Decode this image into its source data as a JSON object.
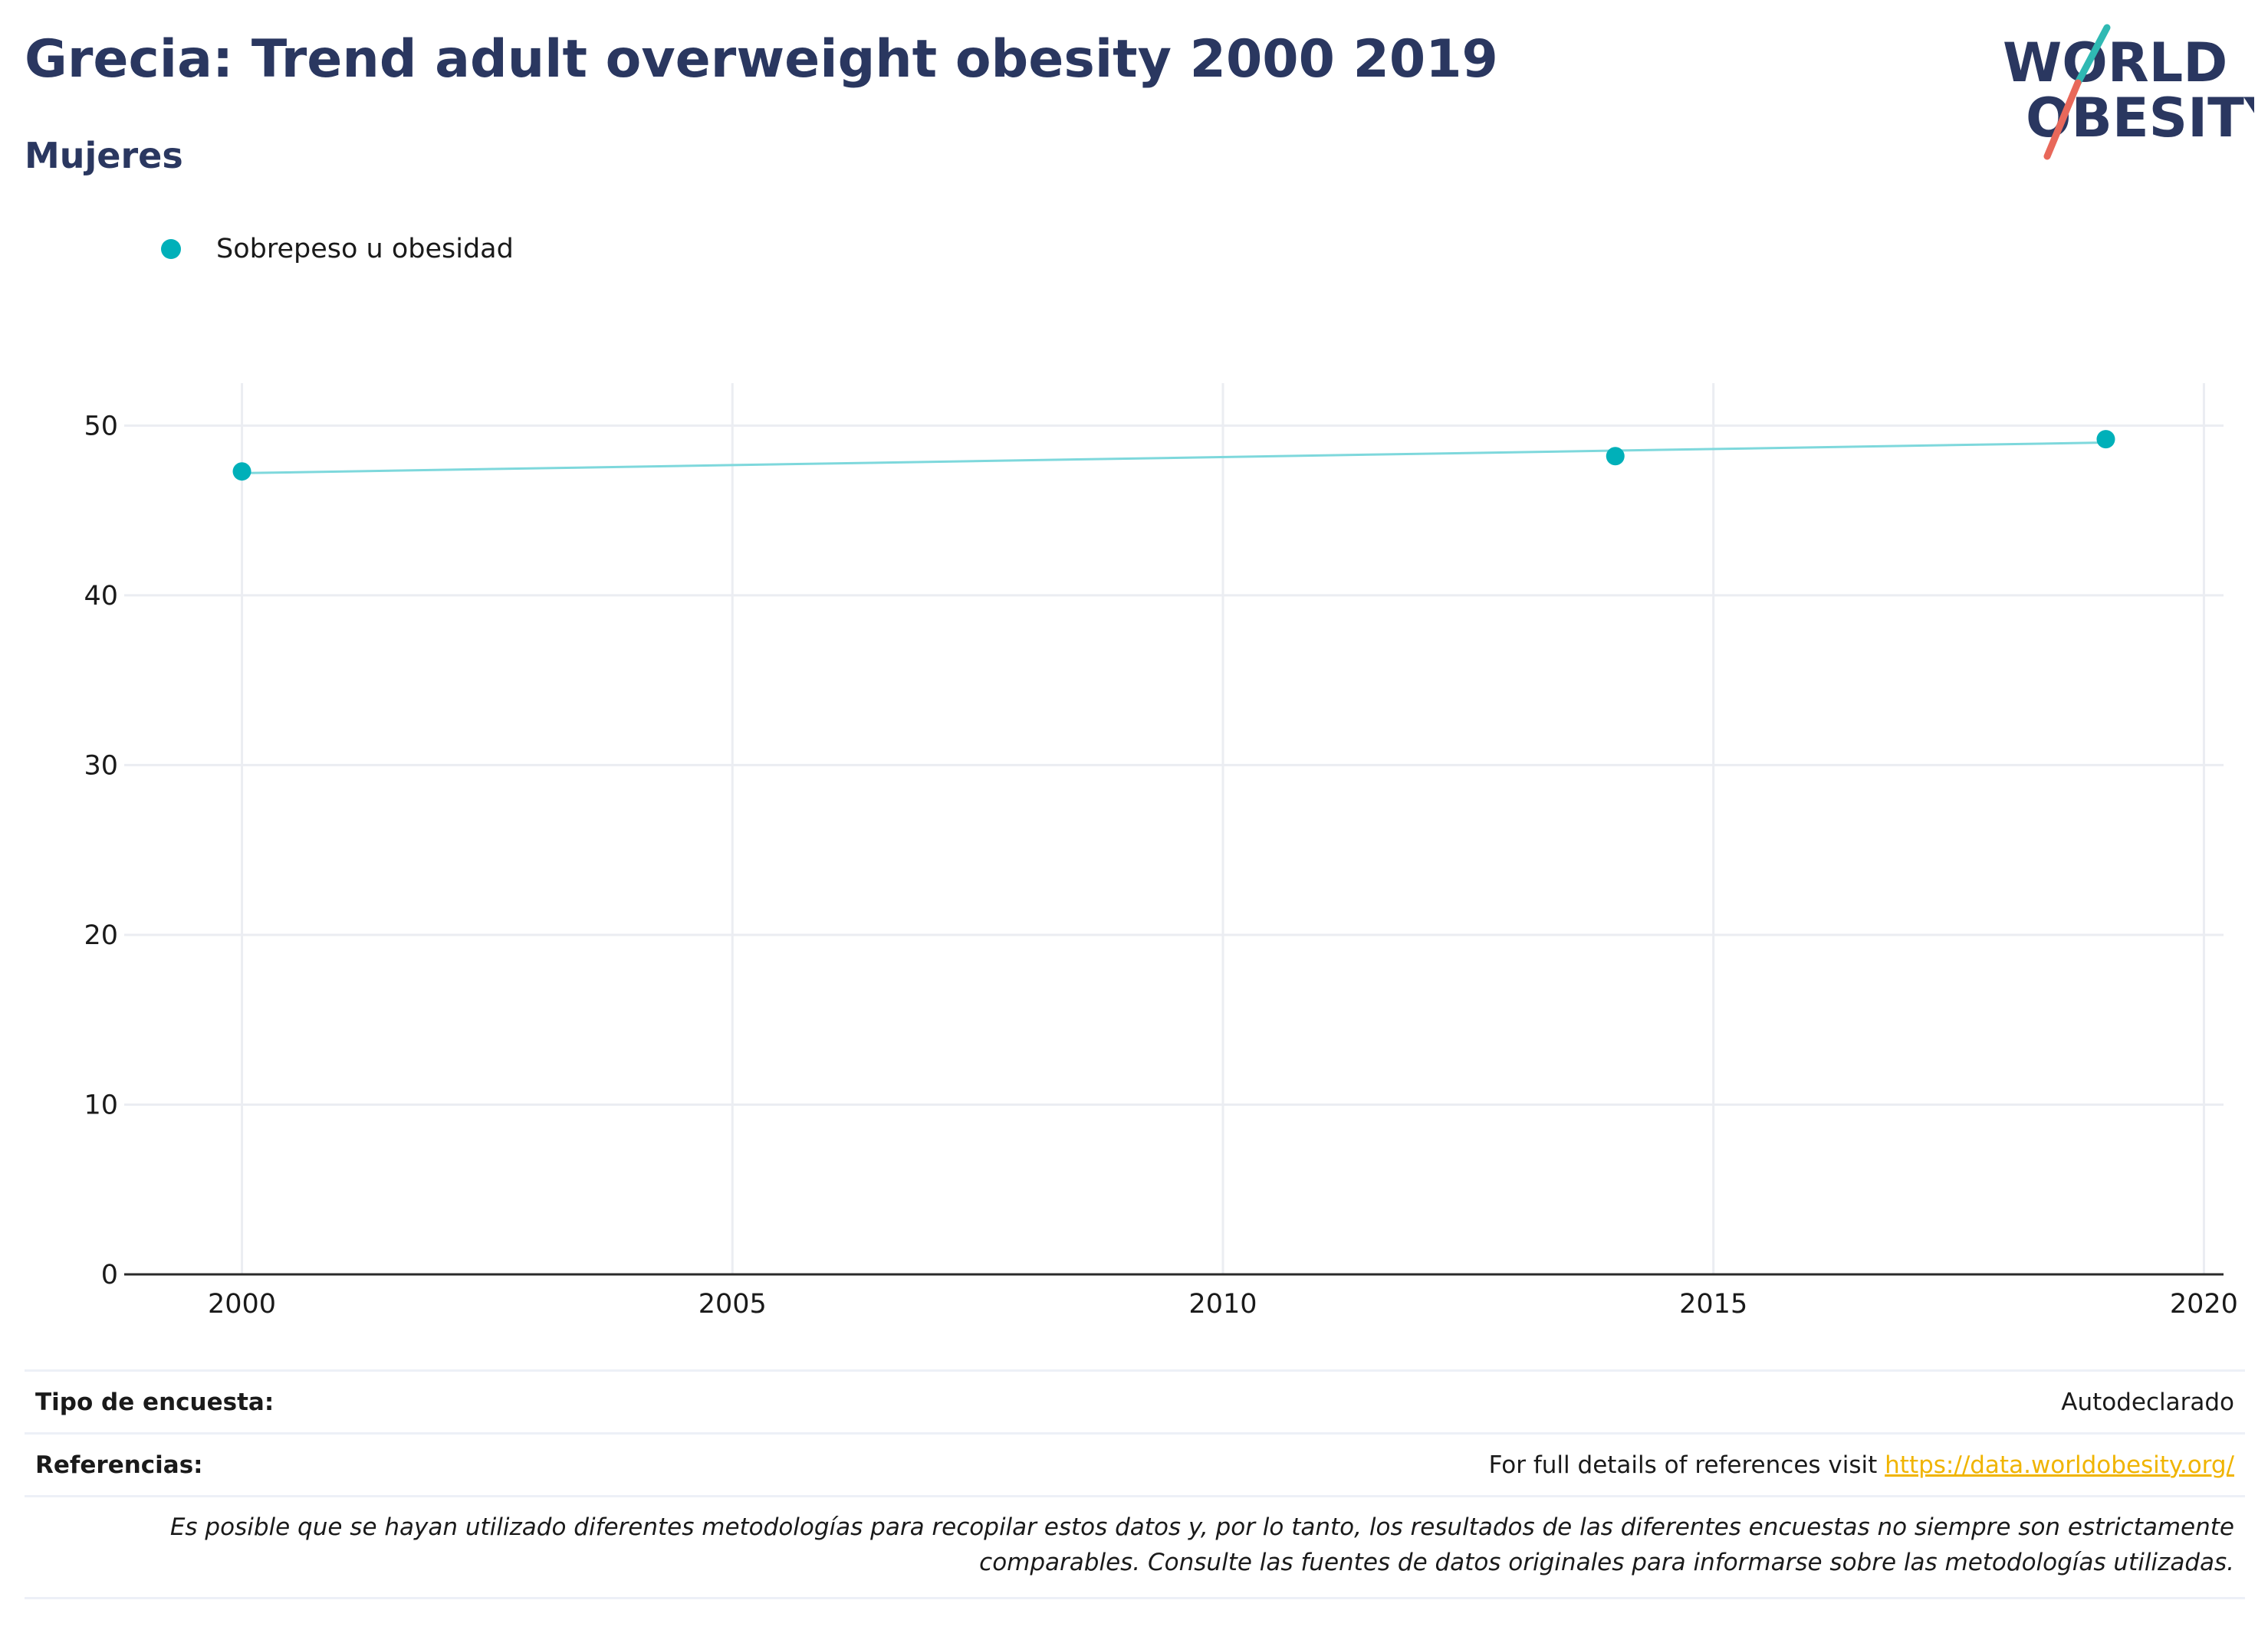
{
  "header": {
    "title": "Grecia: Trend adult overweight obesity 2000 2019",
    "subtitle": "Mujeres"
  },
  "logo": {
    "line1": "WORLD",
    "line2": "OBESITY"
  },
  "colors": {
    "title": "#2a3760",
    "series": "#00b0b9",
    "series_line": "#7ed8dc",
    "link": "#f0b400",
    "logo_teal": "#2fb9b3",
    "logo_coral": "#e8685a"
  },
  "chart_data": {
    "type": "line",
    "x": [
      2000,
      2014,
      2019
    ],
    "series": [
      {
        "name": "Sobrepeso u obesidad",
        "values": [
          47.3,
          48.2,
          49.2
        ]
      }
    ],
    "trend": {
      "x": [
        2000,
        2019
      ],
      "y": [
        47.2,
        49.0
      ]
    },
    "xlim": [
      1998.8,
      2020.2
    ],
    "ylim": [
      0,
      52.5
    ],
    "xticks": [
      2000,
      2005,
      2010,
      2015,
      2020
    ],
    "yticks": [
      0,
      10,
      20,
      30,
      40,
      50
    ],
    "grid": true,
    "legend": "top-left"
  },
  "footer": {
    "survey_type_label": "Tipo de encuesta:",
    "survey_type_value": "Autodeclarado",
    "references_label": "Referencias:",
    "references_text": "For full details of references visit ",
    "references_link": "https://data.worldobesity.org/",
    "note_line1": "Es posible que se hayan utilizado diferentes metodologías para recopilar estos datos y, por lo tanto, los resultados de las diferentes encuestas no siempre son estrictamente",
    "note_line2": "comparables. Consulte las fuentes de datos originales para informarse sobre las metodologías utilizadas."
  }
}
